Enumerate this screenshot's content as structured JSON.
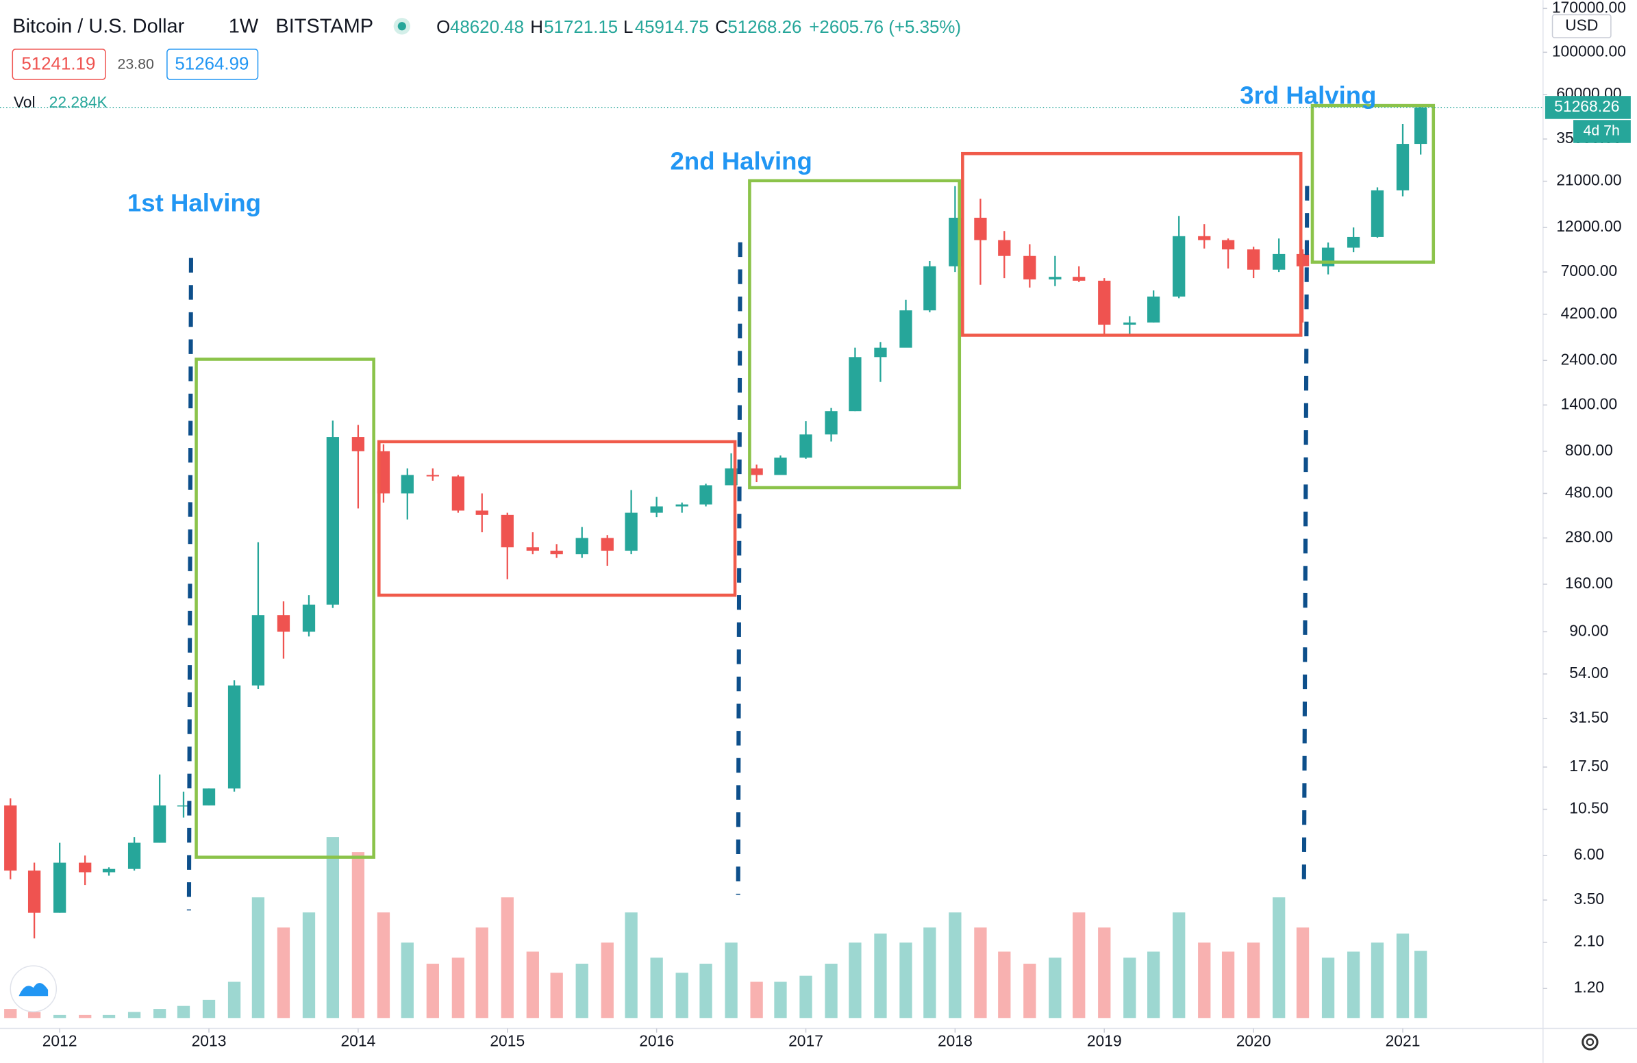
{
  "chart_data": {
    "type": "candlestick",
    "symbol": "Bitcoin / U.S. Dollar",
    "interval": "1W",
    "exchange": "BITSTAMP",
    "ohlc_legend": [
      "O",
      "48620.48",
      "H",
      "51721.15",
      "L",
      "45914.75",
      "C",
      "51268.26"
    ],
    "change": "+2605.76 (+5.35%)",
    "bid": "51241.19",
    "spread": "23.80",
    "ask": "51264.99",
    "volume_label": "Vol",
    "volume_value": "22.284K",
    "price_badge": "51268.26",
    "countdown": "4d 7h",
    "currency": "USD",
    "annotations": [
      "1st Halving",
      "2nd Halving",
      "3rd Halving"
    ],
    "x": [
      2011.67,
      2011.83,
      2012.0,
      2012.17,
      2012.33,
      2012.5,
      2012.67,
      2012.83,
      2013.0,
      2013.17,
      2013.33,
      2013.5,
      2013.67,
      2013.83,
      2014.0,
      2014.17,
      2014.33,
      2014.5,
      2014.67,
      2014.83,
      2015.0,
      2015.17,
      2015.33,
      2015.5,
      2015.67,
      2015.83,
      2016.0,
      2016.17,
      2016.33,
      2016.5,
      2016.67,
      2016.83,
      2017.0,
      2017.17,
      2017.33,
      2017.5,
      2017.67,
      2017.83,
      2018.0,
      2018.17,
      2018.33,
      2018.5,
      2018.67,
      2018.83,
      2019.0,
      2019.17,
      2019.33,
      2019.5,
      2019.67,
      2019.83,
      2020.0,
      2020.17,
      2020.33,
      2020.5,
      2020.67,
      2020.83,
      2021.0,
      2021.12
    ],
    "open": [
      11,
      5,
      3,
      5.5,
      4.9,
      5.1,
      7,
      11,
      11,
      13.5,
      47,
      110,
      90,
      125,
      950,
      800,
      480,
      600,
      590,
      390,
      370,
      250,
      240,
      230,
      280,
      240,
      380,
      410,
      420,
      530,
      650,
      600,
      740,
      980,
      1300,
      2500,
      2800,
      4400,
      7500,
      13500,
      10300,
      8500,
      6400,
      6600,
      6300,
      3700,
      3800,
      5200,
      10800,
      10300,
      9200,
      7200,
      8700,
      7500,
      9400,
      10700,
      18800,
      33000
    ],
    "high": [
      12,
      5.5,
      7,
      6,
      5.2,
      7.5,
      16,
      13,
      13.5,
      50,
      266,
      130,
      140,
      1160,
      1100,
      870,
      650,
      650,
      600,
      480,
      380,
      300,
      260,
      320,
      290,
      500,
      460,
      430,
      540,
      780,
      680,
      760,
      1150,
      1350,
      2800,
      3000,
      5000,
      8000,
      19800,
      17000,
      11500,
      9800,
      8500,
      7500,
      6500,
      4100,
      5600,
      13800,
      12500,
      10500,
      9500,
      10500,
      9200,
      10000,
      12000,
      19500,
      42000,
      51721
    ],
    "low": [
      4.5,
      2.2,
      3,
      4.2,
      4.7,
      5,
      7,
      9.5,
      11,
      13,
      45,
      65,
      85,
      120,
      400,
      430,
      350,
      560,
      380,
      300,
      170,
      230,
      220,
      220,
      200,
      230,
      360,
      380,
      410,
      530,
      550,
      600,
      730,
      900,
      1300,
      1850,
      2900,
      4300,
      7000,
      6000,
      6500,
      5800,
      5900,
      6200,
      3200,
      3300,
      3800,
      5100,
      9300,
      7300,
      6500,
      7000,
      3800,
      6800,
      8900,
      10600,
      17500,
      29000
    ],
    "close": [
      5,
      3,
      5.5,
      4.9,
      5.1,
      7,
      11,
      11,
      13.5,
      47,
      110,
      90,
      125,
      950,
      800,
      480,
      600,
      590,
      390,
      370,
      250,
      240,
      230,
      280,
      240,
      380,
      410,
      420,
      530,
      650,
      600,
      740,
      980,
      1300,
      2500,
      2800,
      4400,
      7500,
      13500,
      10300,
      8500,
      6400,
      6600,
      6300,
      3700,
      3800,
      5200,
      10800,
      10300,
      9200,
      7200,
      8700,
      7500,
      9400,
      10700,
      18800,
      33000,
      51268.26
    ],
    "volume": [
      3,
      2,
      1,
      1,
      1,
      2,
      3,
      4,
      6,
      12,
      40,
      30,
      35,
      60,
      55,
      35,
      25,
      18,
      20,
      30,
      40,
      22,
      15,
      18,
      25,
      35,
      20,
      15,
      18,
      25,
      12,
      12,
      14,
      18,
      25,
      28,
      25,
      30,
      35,
      30,
      22,
      18,
      20,
      35,
      30,
      20,
      22,
      35,
      25,
      22,
      25,
      40,
      30,
      20,
      22,
      25,
      28,
      22.284
    ],
    "vlim": [
      0,
      90
    ],
    "up_color": "#26a69a",
    "down_color": "#ef5350",
    "log_y": true,
    "grid": false,
    "xlim": [
      2011.6,
      2021.94
    ],
    "xticks": [
      2012,
      2013,
      2014,
      2015,
      2016,
      2017,
      2018,
      2019,
      2020,
      2021
    ],
    "ylim": [
      0.74,
      188000
    ],
    "yticks": [
      {
        "value": 1.2,
        "label": "1.20"
      },
      {
        "value": 2.1,
        "label": "2.10"
      },
      {
        "value": 3.5,
        "label": "3.50"
      },
      {
        "value": 6,
        "label": "6.00"
      },
      {
        "value": 10.5,
        "label": "10.50"
      },
      {
        "value": 17.5,
        "label": "17.50"
      },
      {
        "value": 31.5,
        "label": "31.50"
      },
      {
        "value": 54,
        "label": "54.00"
      },
      {
        "value": 90,
        "label": "90.00"
      },
      {
        "value": 160,
        "label": "160.00"
      },
      {
        "value": 280,
        "label": "280.00"
      },
      {
        "value": 480,
        "label": "480.00"
      },
      {
        "value": 800,
        "label": "800.00"
      },
      {
        "value": 1400,
        "label": "1400.00"
      },
      {
        "value": 2400,
        "label": "2400.00"
      },
      {
        "value": 4200,
        "label": "4200.00"
      },
      {
        "value": 7000,
        "label": "7000.00"
      },
      {
        "value": 12000,
        "label": "12000.00"
      },
      {
        "value": 21000,
        "label": "21000.00"
      },
      {
        "value": 35000,
        "label": "35000.00"
      },
      {
        "value": 60000,
        "label": "60000.00"
      },
      {
        "value": 100000,
        "label": "100000.00"
      },
      {
        "value": 170000,
        "label": "170000.00"
      }
    ]
  }
}
